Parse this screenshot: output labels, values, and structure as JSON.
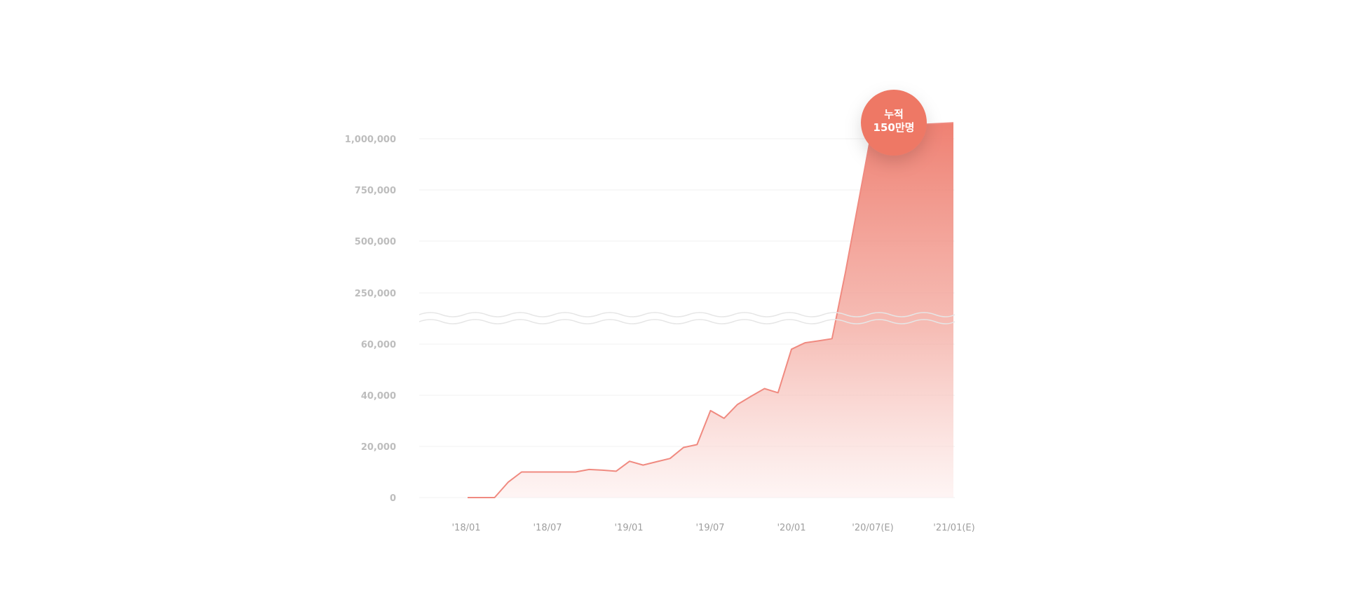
{
  "chart_data": {
    "type": "area",
    "title": "",
    "xlabel": "",
    "ylabel": "",
    "y_ticks": [
      "0",
      "20,000",
      "40,000",
      "60,000",
      "250,000",
      "500,000",
      "750,000",
      "1,000,000"
    ],
    "y_axis_break": "between 60,000 and 250,000",
    "x_ticks": [
      "'18/01",
      "'18/07",
      "'19/01",
      "'19/07",
      "'20/01",
      "'20/07(E)",
      "'21/01(E)"
    ],
    "grid": true,
    "colors": {
      "line": "#f08a80",
      "fill_top": "#ee7a6b",
      "fill_bottom": "#fdeeed",
      "badge": "#ee7865"
    },
    "annotation": {
      "line1": "누적",
      "line2": "150만명"
    },
    "series": [
      {
        "x": [
          "2018-01",
          "2018-02",
          "2018-03",
          "2018-04",
          "2018-05",
          "2018-06",
          "2018-07",
          "2018-08",
          "2018-09",
          "2018-10",
          "2018-11",
          "2018-12",
          "2019-01",
          "2019-02",
          "2019-03",
          "2019-04",
          "2019-05",
          "2019-06",
          "2019-07",
          "2019-08",
          "2019-09",
          "2019-10",
          "2019-11",
          "2019-12",
          "2020-01",
          "2020-02",
          "2020-03",
          "2020-04",
          "2020-05",
          "2020-07",
          "2021-01"
        ],
        "values": [
          0,
          0,
          0,
          6000,
          10000,
          10000,
          10000,
          10000,
          10000,
          11000,
          10700,
          10300,
          14200,
          12700,
          14000,
          15300,
          19600,
          20700,
          34000,
          31000,
          36400,
          39600,
          42600,
          41000,
          58000,
          65000,
          72000,
          80000,
          350000,
          1050000,
          1070000
        ]
      }
    ]
  }
}
